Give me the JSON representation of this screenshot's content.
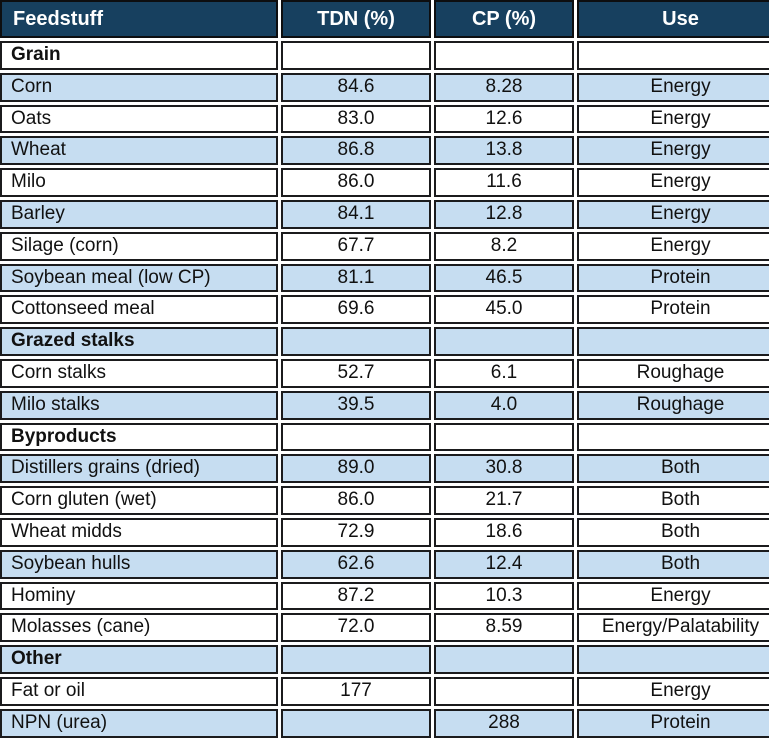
{
  "colors": {
    "header_bg": "#17405f",
    "header_text": "#ffffff",
    "row_blue": "#c6ddf1",
    "row_white": "#ffffff",
    "cell_border": "#1b1b1d",
    "bottom_bar": "#163a57",
    "body_text": "#111111"
  },
  "chart_data": {
    "type": "table",
    "columns": [
      {
        "label": "Feedstuff",
        "align": "left"
      },
      {
        "label": "TDN (%)",
        "align": "center"
      },
      {
        "label": "CP (%)",
        "align": "center"
      },
      {
        "label": "Use",
        "align": "center"
      }
    ],
    "rows": [
      {
        "type": "section",
        "feedstuff": "Grain",
        "tdn": "",
        "cp": "",
        "use": "",
        "shade": "white"
      },
      {
        "type": "item",
        "feedstuff": "Corn",
        "tdn": "84.6",
        "cp": "8.28",
        "use": "Energy",
        "shade": "blue"
      },
      {
        "type": "item",
        "feedstuff": "Oats",
        "tdn": "83.0",
        "cp": "12.6",
        "use": "Energy",
        "shade": "white"
      },
      {
        "type": "item",
        "feedstuff": "Wheat",
        "tdn": "86.8",
        "cp": "13.8",
        "use": "Energy",
        "shade": "blue"
      },
      {
        "type": "item",
        "feedstuff": "Milo",
        "tdn": "86.0",
        "cp": "11.6",
        "use": "Energy",
        "shade": "white"
      },
      {
        "type": "item",
        "feedstuff": "Barley",
        "tdn": "84.1",
        "cp": "12.8",
        "use": "Energy",
        "shade": "blue"
      },
      {
        "type": "item",
        "feedstuff": "Silage (corn)",
        "tdn": "67.7",
        "cp": "8.2",
        "use": "Energy",
        "shade": "white"
      },
      {
        "type": "item",
        "feedstuff": "Soybean meal (low CP)",
        "tdn": "81.1",
        "cp": "46.5",
        "use": "Protein",
        "shade": "blue"
      },
      {
        "type": "item",
        "feedstuff": "Cottonseed meal",
        "tdn": "69.6",
        "cp": "45.0",
        "use": "Protein",
        "shade": "white"
      },
      {
        "type": "section",
        "feedstuff": "Grazed stalks",
        "tdn": "",
        "cp": "",
        "use": "",
        "shade": "blue"
      },
      {
        "type": "item",
        "feedstuff": "Corn stalks",
        "tdn": "52.7",
        "cp": "6.1",
        "use": "Roughage",
        "shade": "white"
      },
      {
        "type": "item",
        "feedstuff": "Milo stalks",
        "tdn": "39.5",
        "cp": "4.0",
        "use": "Roughage",
        "shade": "blue"
      },
      {
        "type": "section",
        "feedstuff": "Byproducts",
        "tdn": "",
        "cp": "",
        "use": "",
        "shade": "white"
      },
      {
        "type": "item",
        "feedstuff": "Distillers grains (dried)",
        "tdn": "89.0",
        "cp": "30.8",
        "use": "Both",
        "shade": "blue"
      },
      {
        "type": "item",
        "feedstuff": "Corn gluten (wet)",
        "tdn": "86.0",
        "cp": "21.7",
        "use": "Both",
        "shade": "white"
      },
      {
        "type": "item",
        "feedstuff": "Wheat midds",
        "tdn": "72.9",
        "cp": "18.6",
        "use": "Both",
        "shade": "white"
      },
      {
        "type": "item",
        "feedstuff": "Soybean hulls",
        "tdn": "62.6",
        "cp": "12.4",
        "use": "Both",
        "shade": "blue"
      },
      {
        "type": "item",
        "feedstuff": "Hominy",
        "tdn": "87.2",
        "cp": "10.3",
        "use": "Energy",
        "shade": "white"
      },
      {
        "type": "item",
        "feedstuff": "Molasses (cane)",
        "tdn": "72.0",
        "cp": "8.59",
        "use": "Energy/Palatability",
        "shade": "white"
      },
      {
        "type": "section",
        "feedstuff": "Other",
        "tdn": "",
        "cp": "",
        "use": "",
        "shade": "blue"
      },
      {
        "type": "item",
        "feedstuff": "Fat or oil",
        "tdn": "177",
        "cp": "",
        "use": "Energy",
        "shade": "white"
      },
      {
        "type": "item",
        "feedstuff": "NPN (urea)",
        "tdn": "",
        "cp": "288",
        "use": "Protein",
        "shade": "blue"
      }
    ]
  }
}
